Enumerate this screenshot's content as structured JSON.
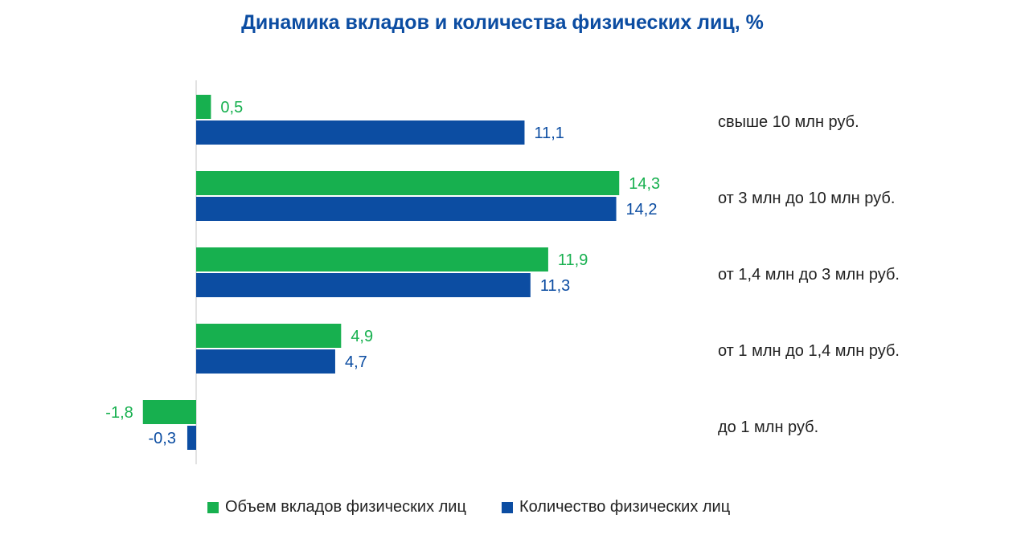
{
  "chart_data": {
    "type": "bar",
    "orientation": "horizontal",
    "title": "Динамика вкладов и количества физических лиц, %",
    "categories": [
      "свыше 10 млн руб.",
      "от 3 млн до 10 млн руб.",
      "от 1,4 млн до 3 млн руб.",
      "от 1 млн до 1,4 млн руб.",
      "до 1 млн руб."
    ],
    "series": [
      {
        "name": "Объем вкладов физических лиц",
        "color": "#17b04f",
        "values": [
          0.5,
          14.3,
          11.9,
          4.9,
          -1.8
        ],
        "labels": [
          "0,5",
          "14,3",
          "11,9",
          "4,9",
          "-1,8"
        ]
      },
      {
        "name": "Количество физических лиц",
        "color": "#0c4da2",
        "values": [
          11.1,
          14.2,
          11.3,
          4.7,
          -0.3
        ],
        "labels": [
          "11,1",
          "14,2",
          "11,3",
          "4,7",
          "-0,3"
        ]
      }
    ],
    "xlim": [
      -1.8,
      14.3
    ],
    "grid": false,
    "legend_position": "bottom"
  }
}
